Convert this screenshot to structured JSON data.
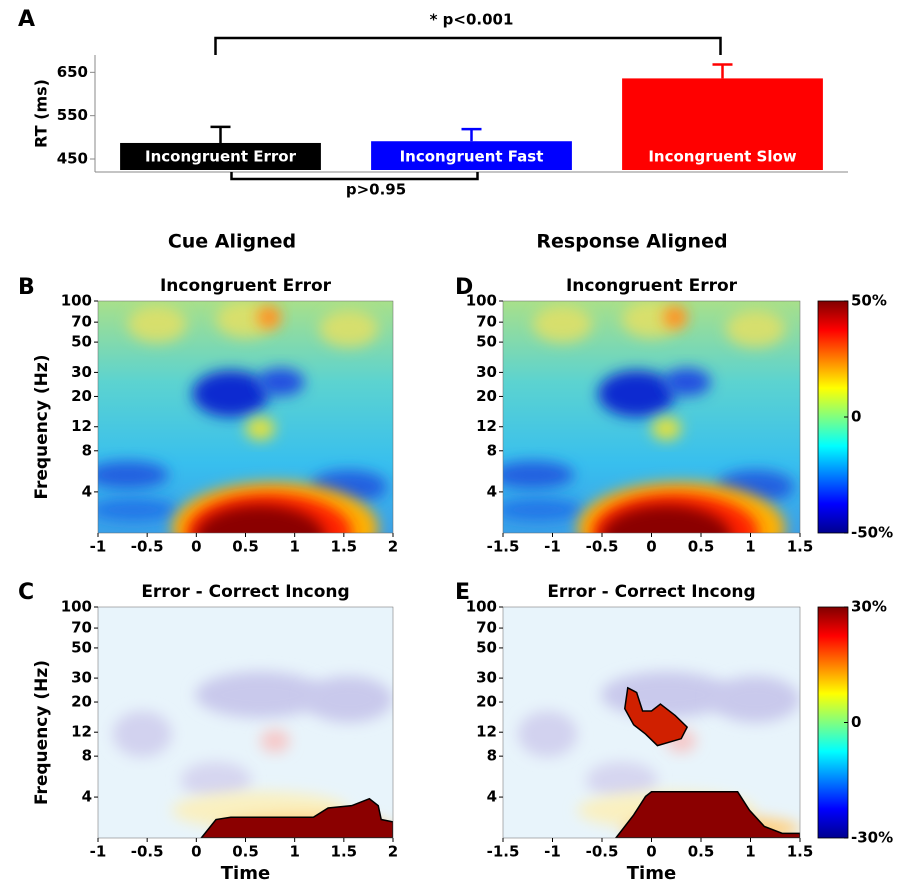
{
  "column_titles": [
    "Cue Aligned",
    "Response Aligned"
  ],
  "chart_data": [
    {
      "type": "bar",
      "panel": "A",
      "ylabel": "RT (ms)",
      "categories": [
        "Incongruent Error",
        "Incongruent Fast",
        "Incongruent Slow"
      ],
      "values": [
        487,
        491,
        636
      ],
      "errors": [
        37,
        28,
        32
      ],
      "colors": [
        "#000000",
        "#0000ff",
        "#ff0000"
      ],
      "ylim": [
        420,
        690
      ],
      "yticks": [
        450,
        550,
        650
      ],
      "annotations": [
        "* p<0.001",
        "p>0.95"
      ]
    },
    {
      "type": "heatmap",
      "panel": "B",
      "title": "Incongruent Error",
      "ylabel": "Frequency (Hz)",
      "xlim": [
        -1,
        2
      ],
      "xticks": [
        -1,
        -0.5,
        0,
        0.5,
        1,
        1.5,
        2
      ],
      "ylim": [
        2,
        100
      ],
      "yticks": [
        100,
        70,
        50,
        30,
        20,
        12,
        8,
        4
      ],
      "log_y": true
    },
    {
      "type": "heatmap",
      "panel": "C",
      "title": "Error - Correct Incong",
      "ylabel": "Frequency (Hz)",
      "xlabel": "Time",
      "xlim": [
        -1,
        2
      ],
      "xticks": [
        -1,
        -0.5,
        0,
        0.5,
        1,
        1.5,
        2
      ],
      "ylim": [
        2,
        100
      ],
      "yticks": [
        100,
        70,
        50,
        30,
        20,
        12,
        8,
        4
      ],
      "log_y": true
    },
    {
      "type": "heatmap",
      "panel": "D",
      "title": "Incongruent Error",
      "xlim": [
        -1.5,
        1.5
      ],
      "xticks": [
        -1.5,
        -1,
        -0.5,
        0,
        0.5,
        1,
        1.5
      ],
      "ylim": [
        2,
        100
      ],
      "yticks": [
        100,
        70,
        50,
        30,
        20,
        12,
        8,
        4
      ],
      "log_y": true,
      "colorbar": {
        "clim": [
          -50,
          50
        ],
        "ticks": [
          {
            "value": 50,
            "label": "50%"
          },
          0,
          {
            "value": -50,
            "label": "-50%"
          }
        ]
      }
    },
    {
      "type": "heatmap",
      "panel": "E",
      "title": "Error - Correct Incong",
      "xlabel": "Time",
      "xlim": [
        -1.5,
        1.5
      ],
      "xticks": [
        -1.5,
        -1,
        -0.5,
        0,
        0.5,
        1,
        1.5
      ],
      "ylim": [
        2,
        100
      ],
      "yticks": [
        100,
        70,
        50,
        30,
        20,
        12,
        8,
        4
      ],
      "log_y": true,
      "colorbar": {
        "clim": [
          -30,
          30
        ],
        "ticks": [
          {
            "value": 30,
            "label": "30%"
          },
          0,
          {
            "value": -30,
            "label": "-30%"
          }
        ]
      }
    }
  ]
}
